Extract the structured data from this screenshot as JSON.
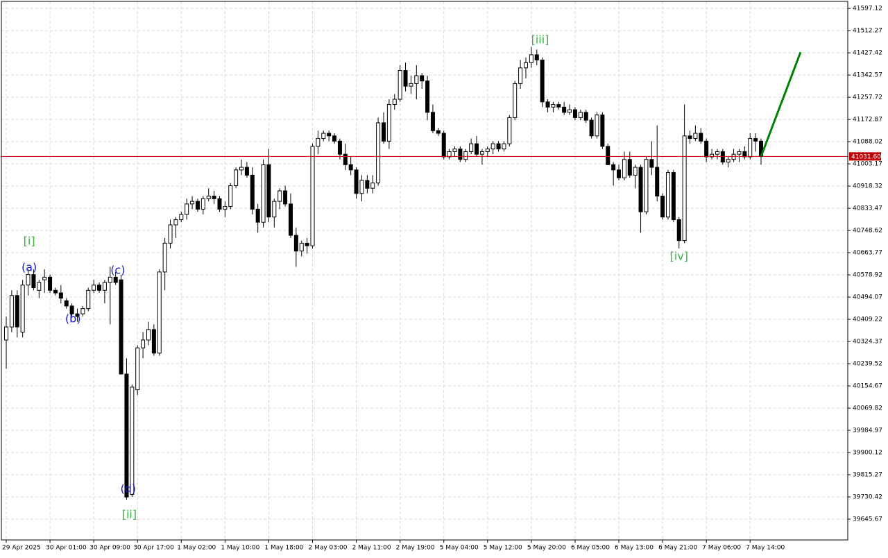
{
  "chart_data": {
    "type": "candlestick",
    "ylim": [
      39566,
      41624
    ],
    "yticks": [
      41597.12,
      41512.27,
      41427.42,
      41342.57,
      41257.72,
      41172.87,
      41088.02,
      41003.17,
      40918.32,
      40833.47,
      40748.62,
      40663.77,
      40578.92,
      40494.07,
      40409.22,
      40324.37,
      40239.52,
      40154.67,
      40069.82,
      39984.97,
      39900.12,
      39815.27,
      39730.42,
      39645.67
    ],
    "grid": true,
    "bull_color": "#ffffff",
    "bear_color": "#000000",
    "current_price": 41031.6,
    "current_price_label": "41031.60",
    "current_price_color": "#c00000",
    "projection": {
      "value": 41430,
      "color": "#008000"
    },
    "wave_labels": [
      {
        "text": "[i]",
        "color": "#3cb043"
      },
      {
        "text": "(a)",
        "color": "#1a1acc"
      },
      {
        "text": "(b)",
        "color": "#1a1acc"
      },
      {
        "text": "(c)",
        "color": "#1a1acc"
      },
      {
        "text": "(d)",
        "color": "#1a1acc"
      },
      {
        "text": "[ii]",
        "color": "#3cb043"
      },
      {
        "text": "[iii]",
        "color": "#3cb043"
      },
      {
        "text": "[iv]",
        "color": "#3cb043"
      }
    ],
    "categories": [
      "29 Apr 2025",
      null,
      null,
      null,
      null,
      null,
      null,
      null,
      "30 Apr 01:00",
      null,
      null,
      null,
      null,
      null,
      null,
      null,
      "30 Apr 09:00",
      null,
      null,
      null,
      null,
      null,
      null,
      null,
      "30 Apr 17:00",
      null,
      null,
      null,
      null,
      null,
      null,
      null,
      "1 May 02:00",
      null,
      null,
      null,
      null,
      null,
      null,
      null,
      "1 May 10:00",
      null,
      null,
      null,
      null,
      null,
      null,
      null,
      "1 May 18:00",
      null,
      null,
      null,
      null,
      null,
      null,
      null,
      "2 May 03:00",
      null,
      null,
      null,
      null,
      null,
      null,
      null,
      "2 May 11:00",
      null,
      null,
      null,
      null,
      null,
      null,
      null,
      "2 May 19:00",
      null,
      null,
      null,
      null,
      null,
      null,
      null,
      "5 May 04:00",
      null,
      null,
      null,
      null,
      null,
      null,
      null,
      "5 May 12:00",
      null,
      null,
      null,
      null,
      null,
      null,
      null,
      "5 May 20:00",
      null,
      null,
      null,
      null,
      null,
      null,
      null,
      "6 May 05:00",
      null,
      null,
      null,
      null,
      null,
      null,
      null,
      "6 May 13:00",
      null,
      null,
      null,
      null,
      null,
      null,
      null,
      "6 May 21:00",
      null,
      null,
      null,
      null,
      null,
      null,
      null,
      "7 May 06:00",
      null,
      null,
      null,
      null,
      null,
      null,
      null,
      "7 May 14:00",
      null,
      null
    ],
    "candles": [
      [
        40330,
        40420,
        40220,
        40380
      ],
      [
        40380,
        40520,
        40360,
        40500
      ],
      [
        40500,
        40520,
        40340,
        40380
      ],
      [
        40360,
        40560,
        40340,
        40540
      ],
      [
        40540,
        40600,
        40500,
        40580
      ],
      [
        40580,
        40600,
        40520,
        40530
      ],
      [
        40520,
        40560,
        40490,
        40550
      ],
      [
        40560,
        40600,
        40510,
        40570
      ],
      [
        40570,
        40580,
        40510,
        40520
      ],
      [
        40520,
        40530,
        40500,
        40510
      ],
      [
        40510,
        40540,
        40470,
        40490
      ],
      [
        40480,
        40490,
        40450,
        40460
      ],
      [
        40460,
        40470,
        40420,
        40430
      ],
      [
        40430,
        40450,
        40400,
        40420
      ],
      [
        40430,
        40460,
        40420,
        40450
      ],
      [
        40450,
        40530,
        40440,
        40520
      ],
      [
        40520,
        40560,
        40510,
        40540
      ],
      [
        40540,
        40550,
        40510,
        40520
      ],
      [
        40520,
        40560,
        40470,
        40550
      ],
      [
        40550,
        40610,
        40390,
        40570
      ],
      [
        40570,
        40590,
        40540,
        40550
      ],
      [
        40560,
        40580,
        40200,
        40200
      ],
      [
        40200,
        40260,
        39720,
        39730
      ],
      [
        39740,
        40160,
        39730,
        40150
      ],
      [
        40140,
        40310,
        40120,
        40300
      ],
      [
        40300,
        40360,
        40260,
        40330
      ],
      [
        40330,
        40400,
        40310,
        40370
      ],
      [
        40370,
        40390,
        40270,
        40280
      ],
      [
        40280,
        40600,
        40270,
        40590
      ],
      [
        40590,
        40720,
        40520,
        40700
      ],
      [
        40700,
        40790,
        40680,
        40770
      ],
      [
        40770,
        40800,
        40720,
        40790
      ],
      [
        40790,
        40820,
        40780,
        40810
      ],
      [
        40810,
        40870,
        40790,
        40850
      ],
      [
        40850,
        40880,
        40830,
        40860
      ],
      [
        40860,
        40870,
        40820,
        40830
      ],
      [
        40830,
        40880,
        40810,
        40870
      ],
      [
        40870,
        40910,
        40860,
        40880
      ],
      [
        40880,
        40900,
        40850,
        40870
      ],
      [
        40870,
        40880,
        40820,
        40830
      ],
      [
        40830,
        40860,
        40800,
        40840
      ],
      [
        40840,
        40930,
        40830,
        40920
      ],
      [
        40920,
        40990,
        40910,
        40980
      ],
      [
        40980,
        41020,
        40960,
        40990
      ],
      [
        40990,
        41010,
        40950,
        40960
      ],
      [
        40960,
        40990,
        40810,
        40830
      ],
      [
        40830,
        40850,
        40740,
        40780
      ],
      [
        40780,
        41020,
        40760,
        41000
      ],
      [
        41000,
        41060,
        40780,
        40800
      ],
      [
        40800,
        40870,
        40760,
        40860
      ],
      [
        40860,
        40910,
        40830,
        40900
      ],
      [
        40900,
        40920,
        40840,
        40850
      ],
      [
        40850,
        40890,
        40720,
        40730
      ],
      [
        40730,
        40760,
        40610,
        40670
      ],
      [
        40670,
        40710,
        40650,
        40700
      ],
      [
        40700,
        40720,
        40660,
        40690
      ],
      [
        40690,
        41080,
        40680,
        41070
      ],
      [
        41070,
        41130,
        41040,
        41100
      ],
      [
        41100,
        41130,
        41090,
        41120
      ],
      [
        41120,
        41130,
        41090,
        41110
      ],
      [
        41110,
        41120,
        41080,
        41090
      ],
      [
        41090,
        41100,
        41020,
        41040
      ],
      [
        41040,
        41080,
        40980,
        41000
      ],
      [
        41000,
        41030,
        40960,
        40980
      ],
      [
        40980,
        40990,
        40870,
        40890
      ],
      [
        40890,
        40960,
        40860,
        40940
      ],
      [
        40940,
        40960,
        40890,
        40910
      ],
      [
        40910,
        40960,
        40890,
        40930
      ],
      [
        40930,
        41180,
        40920,
        41160
      ],
      [
        41160,
        41200,
        41080,
        41090
      ],
      [
        41090,
        41250,
        41060,
        41230
      ],
      [
        41230,
        41270,
        41210,
        41250
      ],
      [
        41250,
        41380,
        41240,
        41360
      ],
      [
        41360,
        41390,
        41280,
        41300
      ],
      [
        41300,
        41340,
        41270,
        41310
      ],
      [
        41310,
        41380,
        41250,
        41340
      ],
      [
        41340,
        41350,
        41290,
        41320
      ],
      [
        41320,
        41340,
        41170,
        41200
      ],
      [
        41200,
        41230,
        41120,
        41130
      ],
      [
        41130,
        41140,
        41110,
        41120
      ],
      [
        41120,
        41130,
        41020,
        41030
      ],
      [
        41030,
        41060,
        41020,
        41050
      ],
      [
        41050,
        41070,
        41030,
        41060
      ],
      [
        41060,
        41070,
        41010,
        41020
      ],
      [
        41020,
        41060,
        41010,
        41050
      ],
      [
        41050,
        41100,
        41040,
        41080
      ],
      [
        41080,
        41110,
        41030,
        41040
      ],
      [
        41040,
        41060,
        41000,
        41050
      ],
      [
        41050,
        41070,
        41030,
        41060
      ],
      [
        41060,
        41090,
        41040,
        41080
      ],
      [
        41080,
        41090,
        41050,
        41060
      ],
      [
        41060,
        41090,
        41050,
        41080
      ],
      [
        41080,
        41190,
        41070,
        41180
      ],
      [
        41180,
        41320,
        41170,
        41310
      ],
      [
        41310,
        41400,
        41290,
        41370
      ],
      [
        41370,
        41410,
        41330,
        41390
      ],
      [
        41390,
        41450,
        41370,
        41420
      ],
      [
        41420,
        41440,
        41380,
        41400
      ],
      [
        41400,
        41410,
        41220,
        41240
      ],
      [
        41240,
        41250,
        41200,
        41220
      ],
      [
        41220,
        41240,
        41200,
        41230
      ],
      [
        41230,
        41240,
        41210,
        41220
      ],
      [
        41220,
        41240,
        41190,
        41200
      ],
      [
        41200,
        41230,
        41190,
        41210
      ],
      [
        41210,
        41220,
        41170,
        41180
      ],
      [
        41180,
        41210,
        41170,
        41200
      ],
      [
        41200,
        41210,
        41160,
        41170
      ],
      [
        41170,
        41180,
        41100,
        41110
      ],
      [
        41110,
        41200,
        41100,
        41190
      ],
      [
        41190,
        41200,
        41060,
        41070
      ],
      [
        41070,
        41080,
        41000,
        41000
      ],
      [
        41000,
        41010,
        40920,
        40980
      ],
      [
        40980,
        41000,
        40940,
        40950
      ],
      [
        40950,
        41050,
        40940,
        41020
      ],
      [
        41020,
        41050,
        40950,
        40960
      ],
      [
        40960,
        41000,
        40910,
        40990
      ],
      [
        40990,
        41000,
        40740,
        40820
      ],
      [
        40820,
        41030,
        40810,
        41020
      ],
      [
        41020,
        41090,
        40960,
        40990
      ],
      [
        40990,
        41150,
        40860,
        40880
      ],
      [
        40880,
        40890,
        40790,
        40800
      ],
      [
        40800,
        40980,
        40790,
        40970
      ],
      [
        40970,
        40980,
        40780,
        40790
      ],
      [
        40790,
        40800,
        40680,
        40710
      ],
      [
        40710,
        41230,
        40700,
        41110
      ],
      [
        41110,
        41130,
        41080,
        41100
      ],
      [
        41100,
        41150,
        41090,
        41120
      ],
      [
        41120,
        41140,
        41080,
        41090
      ],
      [
        41090,
        41100,
        41010,
        41030
      ],
      [
        41030,
        41060,
        41020,
        41040
      ],
      [
        41040,
        41060,
        41020,
        41050
      ],
      [
        41050,
        41060,
        41000,
        41010
      ],
      [
        41010,
        41030,
        40990,
        41020
      ],
      [
        41020,
        41060,
        41010,
        41040
      ],
      [
        41040,
        41060,
        41010,
        41050
      ],
      [
        41050,
        41070,
        41020,
        41030
      ],
      [
        41030,
        41120,
        41020,
        41100
      ],
      [
        41100,
        41120,
        41050,
        41090
      ],
      [
        41090,
        41100,
        41000,
        41031.6
      ]
    ]
  }
}
